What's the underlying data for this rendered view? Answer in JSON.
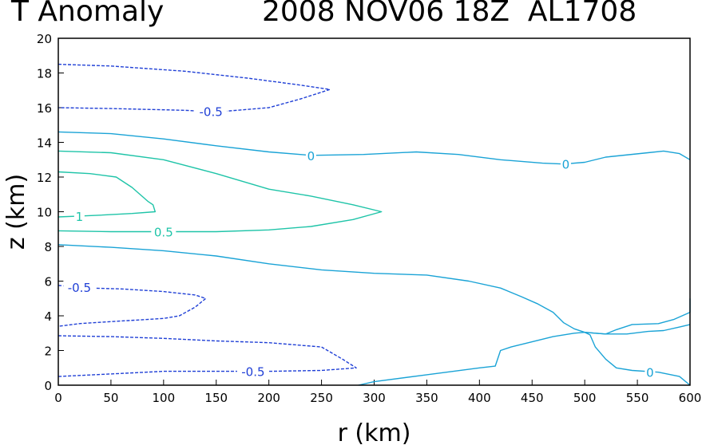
{
  "title": {
    "left": "T Anomaly",
    "right": "2008 NOV06 18Z  AL1708"
  },
  "chart_data": {
    "type": "contour",
    "title": "T Anomaly",
    "subtitle": "2008 NOV06 18Z  AL1708",
    "xlabel": "r (km)",
    "ylabel": "z (km)",
    "xlim": [
      0,
      600
    ],
    "ylim": [
      0,
      20
    ],
    "xticks": [
      0,
      50,
      100,
      150,
      200,
      250,
      300,
      350,
      400,
      450,
      500,
      550,
      600
    ],
    "yticks": [
      0,
      2,
      4,
      6,
      8,
      10,
      12,
      14,
      16,
      18,
      20
    ],
    "colors": {
      "neg": "#1f3fd6",
      "zero": "#1aa3d6",
      "pos": "#1fc4a8"
    },
    "contours": [
      {
        "name": "neg-upper",
        "level": -0.5,
        "style": "neg",
        "dashed": true,
        "points": [
          [
            0,
            18.5
          ],
          [
            50,
            18.4
          ],
          [
            120,
            18.1
          ],
          [
            180,
            17.7
          ],
          [
            230,
            17.3
          ],
          [
            258,
            17.05
          ],
          [
            230,
            16.5
          ],
          [
            200,
            16
          ],
          [
            150,
            15.75
          ],
          [
            120,
            15.85
          ],
          [
            50,
            15.95
          ],
          [
            0,
            16
          ]
        ],
        "labels": [
          {
            "text": "-0.5",
            "x": 145,
            "y": 15.8
          }
        ]
      },
      {
        "name": "zero-upper",
        "level": 0,
        "style": "zero",
        "dashed": false,
        "points": [
          [
            0,
            14.6
          ],
          [
            50,
            14.5
          ],
          [
            100,
            14.2
          ],
          [
            150,
            13.8
          ],
          [
            200,
            13.45
          ],
          [
            240,
            13.25
          ],
          [
            290,
            13.3
          ],
          [
            340,
            13.45
          ],
          [
            380,
            13.3
          ],
          [
            420,
            13.0
          ],
          [
            460,
            12.8
          ],
          [
            480,
            12.75
          ],
          [
            500,
            12.85
          ],
          [
            520,
            13.15
          ],
          [
            560,
            13.4
          ],
          [
            575,
            13.5
          ],
          [
            590,
            13.35
          ],
          [
            600,
            13.0
          ]
        ],
        "labels": [
          {
            "text": "0",
            "x": 240,
            "y": 13.25
          },
          {
            "text": "0",
            "x": 482,
            "y": 12.75
          }
        ]
      },
      {
        "name": "pos-half",
        "level": 0.5,
        "style": "pos",
        "dashed": false,
        "points": [
          [
            0,
            13.5
          ],
          [
            50,
            13.4
          ],
          [
            100,
            13.0
          ],
          [
            150,
            12.2
          ],
          [
            200,
            11.3
          ],
          [
            240,
            10.9
          ],
          [
            280,
            10.4
          ],
          [
            307,
            10.0
          ],
          [
            280,
            9.55
          ],
          [
            240,
            9.15
          ],
          [
            200,
            8.95
          ],
          [
            150,
            8.85
          ],
          [
            100,
            8.85
          ],
          [
            50,
            8.85
          ],
          [
            0,
            8.9
          ]
        ],
        "labels": [
          {
            "text": "0.5",
            "x": 100,
            "y": 8.85
          }
        ]
      },
      {
        "name": "pos-one",
        "level": 1,
        "style": "pos",
        "dashed": false,
        "points": [
          [
            0,
            12.3
          ],
          [
            30,
            12.2
          ],
          [
            55,
            12.0
          ],
          [
            70,
            11.4
          ],
          [
            85,
            10.6
          ],
          [
            90,
            10.4
          ],
          [
            92,
            10.0
          ],
          [
            70,
            9.9
          ],
          [
            40,
            9.8
          ],
          [
            20,
            9.75
          ],
          [
            0,
            9.7
          ]
        ],
        "labels": [
          {
            "text": "1",
            "x": 20,
            "y": 9.75
          }
        ]
      },
      {
        "name": "zero-mid",
        "level": 0,
        "style": "zero",
        "dashed": false,
        "points": [
          [
            0,
            8.1
          ],
          [
            50,
            7.95
          ],
          [
            100,
            7.75
          ],
          [
            150,
            7.45
          ],
          [
            200,
            7.0
          ],
          [
            250,
            6.65
          ],
          [
            300,
            6.45
          ],
          [
            350,
            6.35
          ],
          [
            390,
            6.0
          ],
          [
            420,
            5.6
          ],
          [
            440,
            5.1
          ],
          [
            455,
            4.7
          ],
          [
            470,
            4.2
          ],
          [
            480,
            3.6
          ],
          [
            490,
            3.25
          ],
          [
            500,
            3.05
          ],
          [
            510,
            3.0
          ],
          [
            520,
            2.95
          ],
          [
            540,
            2.95
          ],
          [
            560,
            3.1
          ],
          [
            575,
            3.15
          ],
          [
            590,
            3.35
          ],
          [
            600,
            3.5
          ]
        ],
        "labels": []
      },
      {
        "name": "zero-lower",
        "level": 0,
        "style": "zero",
        "dashed": false,
        "points": [
          [
            285,
            0
          ],
          [
            300,
            0.2
          ],
          [
            350,
            0.6
          ],
          [
            400,
            1.0
          ],
          [
            415,
            1.1
          ],
          [
            420,
            2.0
          ],
          [
            430,
            2.2
          ],
          [
            450,
            2.5
          ],
          [
            470,
            2.8
          ],
          [
            490,
            3.0
          ],
          [
            500,
            3.05
          ],
          [
            510,
            3.0
          ],
          [
            520,
            2.95
          ],
          [
            530,
            3.2
          ],
          [
            545,
            3.5
          ],
          [
            570,
            3.55
          ],
          [
            585,
            3.8
          ],
          [
            600,
            4.2
          ],
          [
            600,
            5.0
          ]
        ],
        "labels": []
      },
      {
        "name": "zero-bottom-right",
        "level": 0,
        "style": "zero",
        "dashed": false,
        "points": [
          [
            500,
            3.05
          ],
          [
            505,
            2.9
          ],
          [
            510,
            2.2
          ],
          [
            520,
            1.5
          ],
          [
            530,
            1.0
          ],
          [
            545,
            0.85
          ],
          [
            570,
            0.75
          ],
          [
            590,
            0.5
          ],
          [
            600,
            0.0
          ]
        ],
        "labels": [
          {
            "text": "0",
            "x": 562,
            "y": 0.75
          }
        ]
      },
      {
        "name": "neg-mid",
        "level": -0.5,
        "style": "neg",
        "dashed": true,
        "points": [
          [
            0,
            5.75
          ],
          [
            30,
            5.6
          ],
          [
            60,
            5.55
          ],
          [
            100,
            5.4
          ],
          [
            130,
            5.2
          ],
          [
            140,
            5.0
          ],
          [
            130,
            4.5
          ],
          [
            115,
            4.0
          ],
          [
            100,
            3.85
          ],
          [
            60,
            3.7
          ],
          [
            20,
            3.55
          ],
          [
            0,
            3.4
          ]
        ],
        "labels": [
          {
            "text": "-0.5",
            "x": 20,
            "y": 5.65
          }
        ]
      },
      {
        "name": "neg-lower",
        "level": -0.5,
        "style": "neg",
        "dashed": true,
        "points": [
          [
            0,
            2.85
          ],
          [
            50,
            2.8
          ],
          [
            100,
            2.7
          ],
          [
            150,
            2.55
          ],
          [
            200,
            2.45
          ],
          [
            250,
            2.2
          ],
          [
            270,
            1.5
          ],
          [
            283,
            1.0
          ],
          [
            250,
            0.85
          ],
          [
            200,
            0.8
          ],
          [
            150,
            0.8
          ],
          [
            100,
            0.8
          ],
          [
            50,
            0.65
          ],
          [
            0,
            0.5
          ]
        ],
        "labels": [
          {
            "text": "-0.5",
            "x": 185,
            "y": 0.8
          }
        ]
      }
    ]
  }
}
